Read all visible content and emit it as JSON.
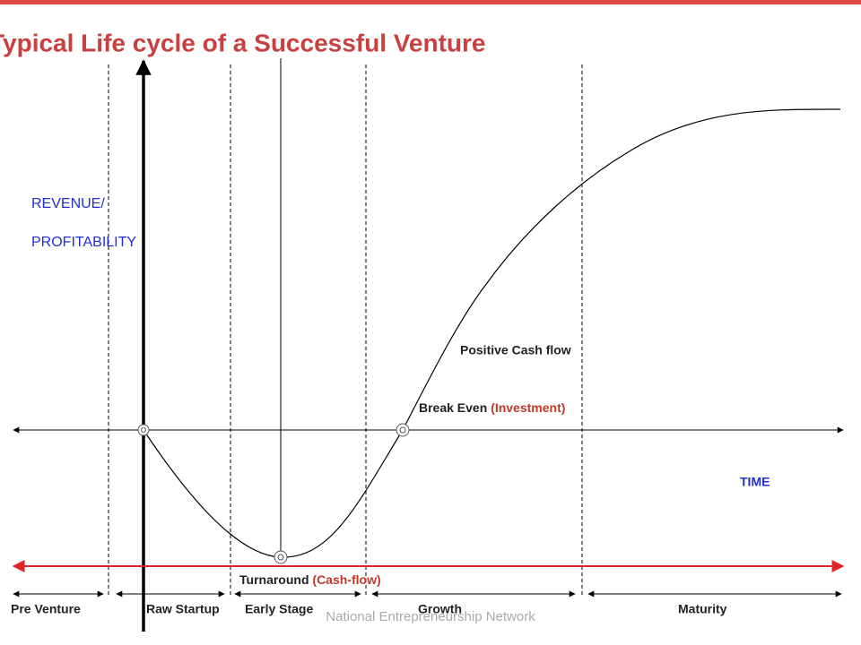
{
  "header": {
    "title": "Typical Life cycle of a Successful Venture"
  },
  "axes": {
    "y_label_line1": "REVENUE/",
    "y_label_line2": "PROFITABILITY",
    "x_label": "TIME"
  },
  "annotations": {
    "positive_cash_flow": "Positive Cash flow",
    "break_even": {
      "text": "Break Even",
      "note": "(Investment)"
    },
    "turnaround": {
      "text": "Turnaround",
      "note": "(Cash-flow)"
    }
  },
  "phases": [
    "Pre Venture",
    "Raw Startup",
    "Early Stage",
    "Growth",
    "Maturity"
  ],
  "footer": "National Entrepreneurship Network"
}
